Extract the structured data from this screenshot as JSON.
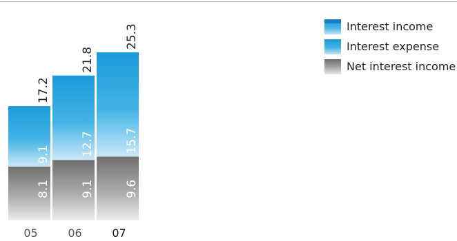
{
  "chart_data": {
    "type": "bar",
    "stacked": true,
    "categories": [
      "05",
      "06",
      "07"
    ],
    "series": [
      {
        "name": "Net interest income",
        "values": [
          8.1,
          9.1,
          9.6
        ],
        "color": "#9a9a9a"
      },
      {
        "name": "Interest expense",
        "values": [
          9.1,
          12.7,
          15.7
        ],
        "color": "#1b9ad9"
      }
    ],
    "totals": [
      17.2,
      21.8,
      25.3
    ],
    "legend": [
      {
        "name": "Interest income",
        "swatch": "blue-cap"
      },
      {
        "name": "Interest expense",
        "swatch": "blue"
      },
      {
        "name": "Net interest income",
        "swatch": "gray"
      }
    ],
    "legend_position": "top-right",
    "ylim": [
      0,
      25.3
    ]
  }
}
